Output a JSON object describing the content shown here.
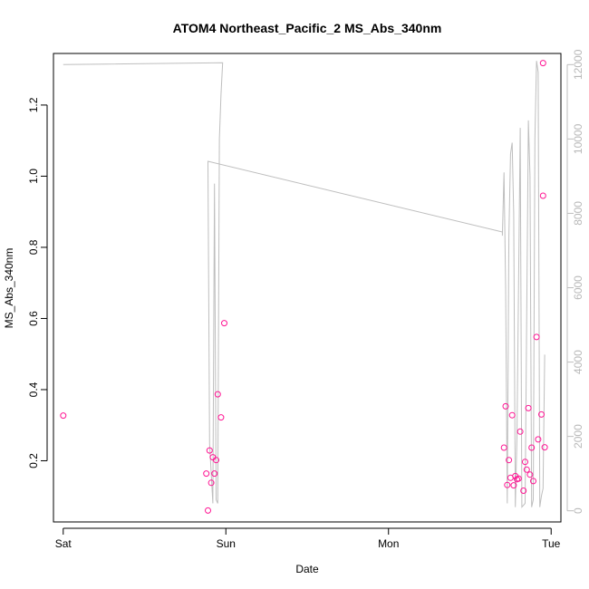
{
  "chart_data": {
    "type": "scatter",
    "title": "ATOM4 Northeast_Pacific_2 MS_Abs_340nm",
    "xlabel": "Date",
    "ylabel": "MS_Abs_340nm",
    "x_ticks": [
      {
        "label": "Sat",
        "x": 0
      },
      {
        "label": "Sun",
        "x": 1
      },
      {
        "label": "Mon",
        "x": 2
      },
      {
        "label": "Tue",
        "x": 3
      }
    ],
    "xlim": [
      -0.06,
      3.06
    ],
    "ylim": [
      0.028,
      1.345
    ],
    "y_ticks": [
      0.2,
      0.4,
      0.6,
      0.8,
      1.0,
      1.2
    ],
    "y_tick_labels": [
      "0.2",
      "0.4",
      "0.6",
      "0.8",
      "1.0",
      "1.2"
    ],
    "y2_lim": [
      -300,
      12300
    ],
    "y2_ticks": [
      0,
      2000,
      4000,
      6000,
      8000,
      10000,
      12000
    ],
    "y2_tick_labels": [
      "0",
      "2000",
      "4000",
      "6000",
      "8000",
      "10000",
      "12000"
    ],
    "grid": false,
    "series": [
      {
        "kind": "points",
        "color": "#ff1493",
        "marker": "open-circle",
        "points": [
          [
            0.0,
            0.327
          ],
          [
            0.88,
            0.164
          ],
          [
            0.89,
            0.06
          ],
          [
            0.9,
            0.229
          ],
          [
            0.91,
            0.138
          ],
          [
            0.92,
            0.21
          ],
          [
            0.93,
            0.164
          ],
          [
            0.94,
            0.202
          ],
          [
            0.95,
            0.387
          ],
          [
            0.97,
            0.322
          ],
          [
            0.99,
            0.587
          ],
          [
            2.71,
            0.237
          ],
          [
            2.72,
            0.353
          ],
          [
            2.73,
            0.132
          ],
          [
            2.74,
            0.202
          ],
          [
            2.75,
            0.152
          ],
          [
            2.76,
            0.328
          ],
          [
            2.77,
            0.131
          ],
          [
            2.78,
            0.157
          ],
          [
            2.79,
            0.148
          ],
          [
            2.8,
            0.15
          ],
          [
            2.81,
            0.282
          ],
          [
            2.83,
            0.116
          ],
          [
            2.84,
            0.197
          ],
          [
            2.85,
            0.175
          ],
          [
            2.86,
            0.348
          ],
          [
            2.87,
            0.161
          ],
          [
            2.88,
            0.237
          ],
          [
            2.89,
            0.143
          ],
          [
            2.91,
            0.548
          ],
          [
            2.92,
            0.26
          ],
          [
            2.94,
            0.33
          ],
          [
            2.95,
            0.945
          ],
          [
            2.95,
            1.318
          ],
          [
            2.96,
            0.238
          ]
        ]
      },
      {
        "kind": "line",
        "color": "#bebebe",
        "axis": "right",
        "points": [
          [
            0.0,
            12000
          ],
          [
            0.98,
            12050
          ],
          [
            0.97,
            11200
          ],
          [
            0.96,
            10000
          ],
          [
            0.95,
            200
          ],
          [
            0.94,
            300
          ],
          [
            0.93,
            8800
          ],
          [
            0.92,
            200
          ],
          [
            0.91,
            1000
          ],
          [
            0.9,
            1800
          ],
          [
            0.89,
            9300
          ],
          [
            0.89,
            9400
          ],
          [
            2.7,
            7500
          ],
          [
            2.7,
            7400
          ],
          [
            2.71,
            9100
          ],
          [
            2.72,
            6000
          ],
          [
            2.73,
            200
          ],
          [
            2.74,
            7400
          ],
          [
            2.75,
            9600
          ],
          [
            2.76,
            9900
          ],
          [
            2.77,
            8000
          ],
          [
            2.78,
            100
          ],
          [
            2.79,
            2000
          ],
          [
            2.81,
            10300
          ],
          [
            2.82,
            100
          ],
          [
            2.84,
            200
          ],
          [
            2.86,
            10500
          ],
          [
            2.87,
            9000
          ],
          [
            2.88,
            100
          ],
          [
            2.89,
            300
          ],
          [
            2.9,
            10000
          ],
          [
            2.91,
            12100
          ],
          [
            2.92,
            11800
          ],
          [
            2.93,
            100
          ],
          [
            2.94,
            400
          ],
          [
            2.95,
            600
          ],
          [
            2.96,
            4200
          ]
        ]
      }
    ]
  }
}
